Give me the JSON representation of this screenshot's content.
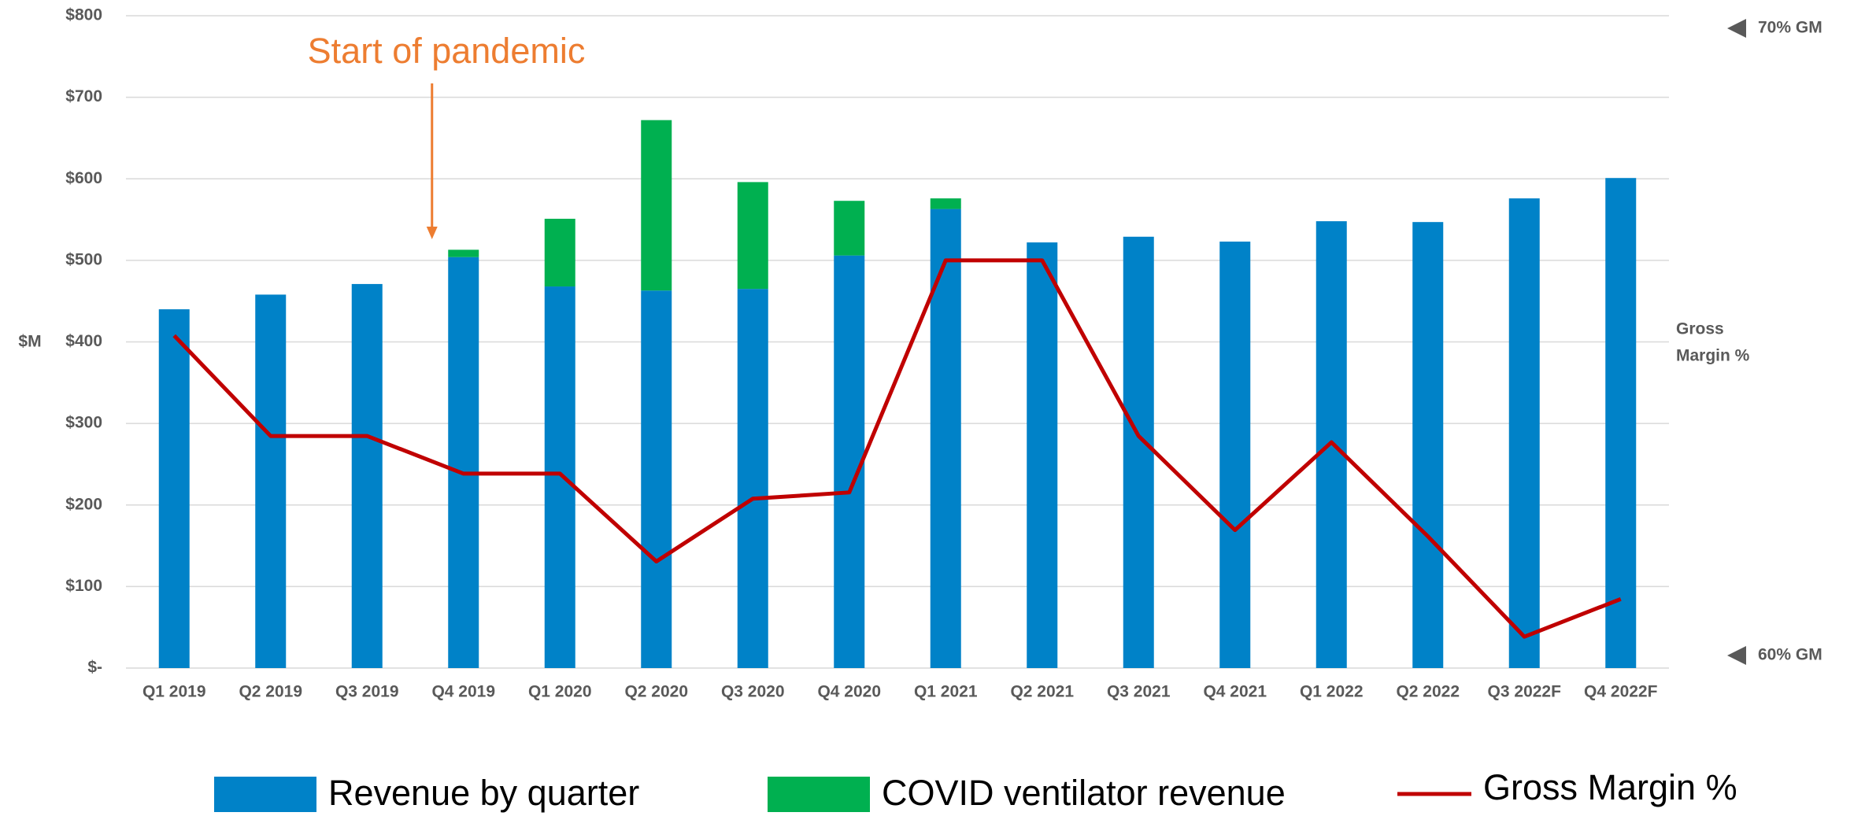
{
  "chart_data": {
    "type": "bar",
    "stacked": true,
    "categories": [
      "Q1 2019",
      "Q2 2019",
      "Q3 2019",
      "Q4 2019",
      "Q1 2020",
      "Q2 2020",
      "Q3 2020",
      "Q4 2020",
      "Q1 2021",
      "Q2 2021",
      "Q3 2021",
      "Q4 2021",
      "Q1 2022",
      "Q2 2022",
      "Q3 2022F",
      "Q4 2022F"
    ],
    "series": [
      {
        "name": "Revenue by quarter",
        "color": "#0082c8",
        "values": [
          440,
          458,
          471,
          504,
          468,
          463,
          465,
          506,
          563,
          522,
          529,
          523,
          548,
          547,
          576,
          601
        ]
      },
      {
        "name": "COVID ventilator revenue",
        "color": "#00b050",
        "values": [
          null,
          null,
          null,
          9,
          83,
          209,
          131,
          67,
          13,
          null,
          null,
          null,
          null,
          null,
          null,
          null
        ]
      },
      {
        "name": "Gross Margin %",
        "color": "#c00000",
        "type": "line",
        "axis": "y2",
        "values": [
          65.1,
          63.5,
          63.5,
          62.9,
          62.9,
          61.5,
          62.5,
          62.6,
          66.3,
          66.3,
          63.5,
          62.0,
          63.4,
          61.9,
          60.3,
          60.9
        ]
      }
    ],
    "ylabel": "$M",
    "ylim": [
      0,
      800
    ],
    "yticks": [
      {
        "value": 0,
        "label": "$-"
      },
      {
        "value": 100,
        "label": "$100"
      },
      {
        "value": 200,
        "label": "$200"
      },
      {
        "value": 300,
        "label": "$300"
      },
      {
        "value": 400,
        "label": "$400"
      },
      {
        "value": 500,
        "label": "$500"
      },
      {
        "value": 600,
        "label": "$600"
      },
      {
        "value": 700,
        "label": "$700"
      },
      {
        "value": 800,
        "label": "$800"
      }
    ],
    "y2label": [
      "Gross",
      "Margin %"
    ],
    "y2lim": [
      59.8,
      70.2
    ],
    "y2ticks": [
      {
        "value": 60,
        "label": "60% GM"
      },
      {
        "value": 70,
        "label": "70% GM"
      }
    ],
    "grid": true,
    "legend": "bottom",
    "annotation": {
      "text": "Start of pandemic",
      "category": 3,
      "color": "#ed7d31"
    }
  }
}
